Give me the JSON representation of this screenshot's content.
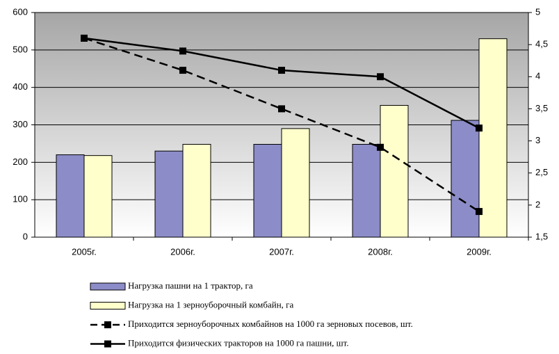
{
  "chart_data": {
    "type": "bar_line",
    "categories": [
      "2005г.",
      "2006г.",
      "2007г.",
      "2008г.",
      "2009г."
    ],
    "series": [
      {
        "name": "Нагрузка пашни на 1 трактор, га",
        "type": "bar",
        "color": "#8c8cc8",
        "values": [
          220,
          230,
          248,
          248,
          312
        ]
      },
      {
        "name": "Нагрузка на 1 зерноуборочный комбайн, га",
        "type": "bar",
        "color": "#ffffcc",
        "values": [
          218,
          248,
          290,
          352,
          530
        ]
      },
      {
        "name": "Приходится зерноуборочных комбайнов на 1000 га зерновых посевов, шт.",
        "type": "line",
        "dash": true,
        "color": "#000000",
        "axis": "y2",
        "values": [
          4.6,
          4.1,
          3.5,
          2.9,
          1.9
        ]
      },
      {
        "name": "Приходится физических тракторов на 1000 га пашни, шт.",
        "type": "line",
        "dash": false,
        "color": "#000000",
        "axis": "y2",
        "values": [
          4.6,
          4.4,
          4.1,
          4.0,
          3.2
        ]
      }
    ],
    "ylim": [
      0,
      600
    ],
    "yticks": [
      0,
      100,
      200,
      300,
      400,
      500,
      600
    ],
    "y2lim": [
      1.5,
      5
    ],
    "y2ticks": [
      {
        "value": 1.5,
        "label": "1,5"
      },
      2,
      {
        "value": 2.5,
        "label": "2,5"
      },
      3,
      {
        "value": 3.5,
        "label": "3,5"
      },
      4,
      {
        "value": 4.5,
        "label": "4,5"
      },
      5
    ],
    "grid": true
  }
}
